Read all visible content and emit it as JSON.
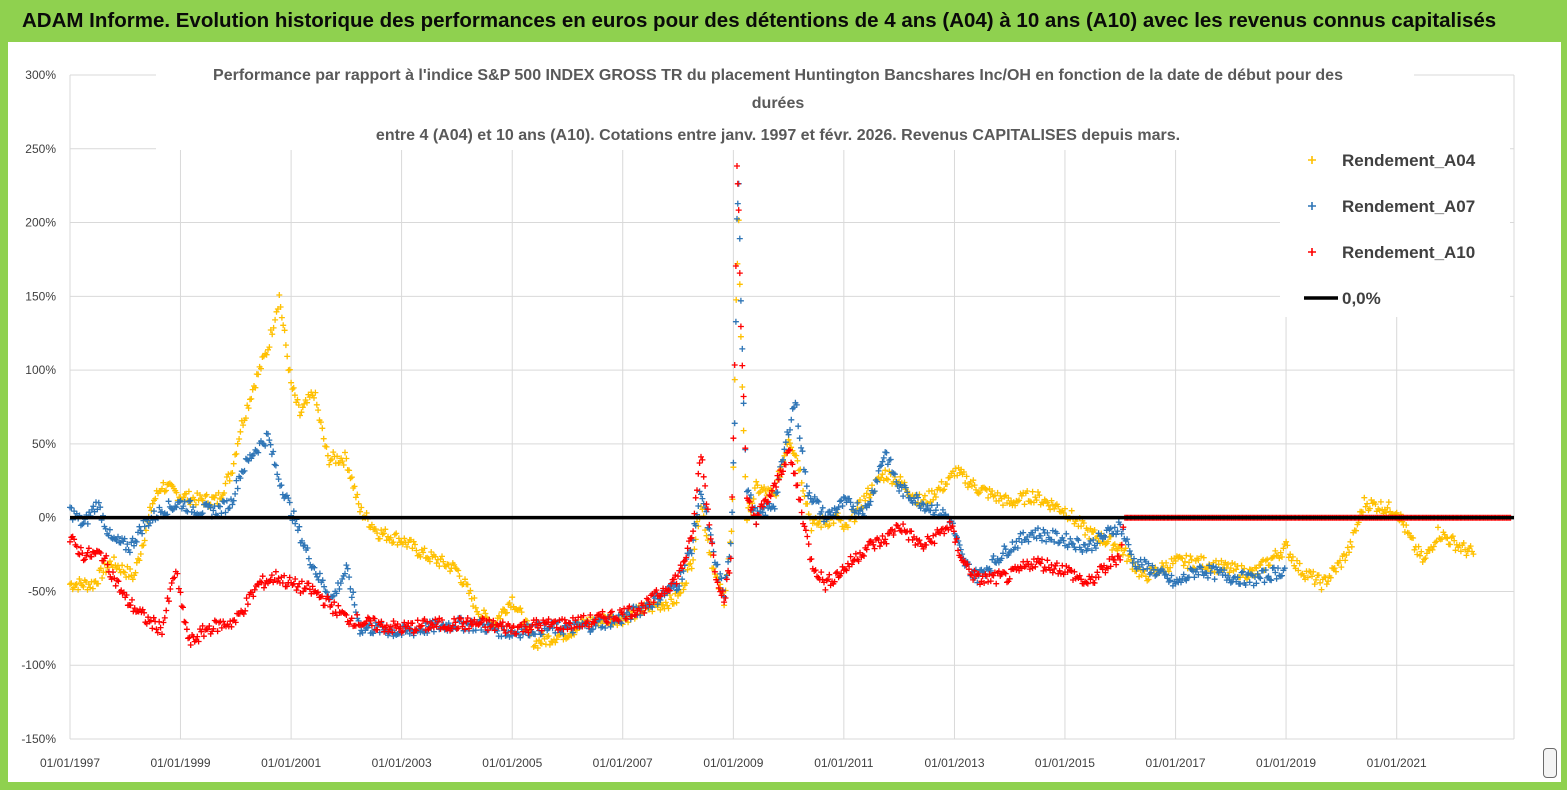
{
  "banner": {
    "title": "ADAM Informe. Evolution historique des performances en euros pour des détentions de 4 ans (A04) à 10 ans (A10) avec les revenus connus capitalisés"
  },
  "colors": {
    "banner_bg": "#8fd14f",
    "A04": "#ffc000",
    "A07": "#2e75b6",
    "A10": "#ff0000",
    "zero_line": "#000000"
  },
  "chart_data": {
    "type": "scatter",
    "title_lines": [
      "Performance par rapport à l'indice S&P 500 INDEX GROSS TR  du placement Huntington Bancshares Inc/OH en fonction de la date de début pour des",
      "durées",
      "entre 4 (A04) et 10 ans (A10). Cotations entre janv. 1997 et févr. 2026. Revenus CAPITALISES depuis mars."
    ],
    "x_type": "date",
    "x_range": [
      "1997-01-01",
      "2023-02-15"
    ],
    "x_tick_labels": [
      "01/01/1997",
      "01/01/1999",
      "01/01/2001",
      "01/01/2003",
      "01/01/2005",
      "01/01/2007",
      "01/01/2009",
      "01/01/2011",
      "01/01/2013",
      "01/01/2015",
      "01/01/2017",
      "01/01/2019",
      "01/01/2021"
    ],
    "y_tick_labels": [
      "300%",
      "250%",
      "200%",
      "150%",
      "100%",
      "50%",
      "0%",
      "-50%",
      "-100%",
      "-150%"
    ],
    "ylim": [
      -150,
      300
    ],
    "y_unit": "%",
    "grid": "horizontal and vertical",
    "legend_position": "top-right",
    "series": [
      {
        "name": "Rendement_A04",
        "marker": "plus",
        "points": [
          [
            "1997-01-01",
            -45
          ],
          [
            "1997-06-01",
            -45
          ],
          [
            "1997-10-01",
            -30
          ],
          [
            "1998-03-01",
            -40
          ],
          [
            "1998-07-01",
            10
          ],
          [
            "1998-09-01",
            22
          ],
          [
            "1999-01-01",
            15
          ],
          [
            "1999-05-01",
            12
          ],
          [
            "1999-09-01",
            12
          ],
          [
            "1999-12-01",
            30
          ],
          [
            "2000-02-01",
            60
          ],
          [
            "2000-05-01",
            90
          ],
          [
            "2000-08-01",
            115
          ],
          [
            "2000-10-15",
            150
          ],
          [
            "2001-01-01",
            90
          ],
          [
            "2001-03-01",
            70
          ],
          [
            "2001-06-01",
            85
          ],
          [
            "2001-09-01",
            40
          ],
          [
            "2002-01-01",
            40
          ],
          [
            "2002-04-01",
            5
          ],
          [
            "2002-08-01",
            -10
          ],
          [
            "2003-01-01",
            -15
          ],
          [
            "2003-06-01",
            -25
          ],
          [
            "2004-01-01",
            -35
          ],
          [
            "2004-06-01",
            -65
          ],
          [
            "2004-09-01",
            -72
          ],
          [
            "2005-01-01",
            -55
          ],
          [
            "2005-06-01",
            -85
          ],
          [
            "2006-01-01",
            -78
          ],
          [
            "2006-06-01",
            -70
          ],
          [
            "2007-01-01",
            -68
          ],
          [
            "2007-06-01",
            -62
          ],
          [
            "2008-01-01",
            -55
          ],
          [
            "2008-04-01",
            -30
          ],
          [
            "2008-06-01",
            10
          ],
          [
            "2008-09-01",
            -40
          ],
          [
            "2008-11-01",
            -55
          ],
          [
            "2008-12-20",
            -10
          ],
          [
            "2009-01-01",
            30
          ],
          [
            "2009-01-20",
            150
          ],
          [
            "2009-02-05",
            200
          ],
          [
            "2009-02-20",
            120
          ],
          [
            "2009-03-10",
            60
          ],
          [
            "2009-04-01",
            0
          ],
          [
            "2009-06-01",
            20
          ],
          [
            "2009-10-01",
            15
          ],
          [
            "2010-01-01",
            55
          ],
          [
            "2010-03-01",
            40
          ],
          [
            "2010-06-01",
            -5
          ],
          [
            "2010-12-01",
            0
          ],
          [
            "2011-01-01",
            -10
          ],
          [
            "2011-06-01",
            15
          ],
          [
            "2011-10-01",
            30
          ],
          [
            "2012-01-01",
            25
          ],
          [
            "2012-06-01",
            10
          ],
          [
            "2012-12-01",
            25
          ],
          [
            "2013-01-01",
            32
          ],
          [
            "2013-06-01",
            20
          ],
          [
            "2014-01-01",
            10
          ],
          [
            "2014-06-01",
            15
          ],
          [
            "2015-01-01",
            5
          ],
          [
            "2015-06-01",
            -10
          ],
          [
            "2016-01-01",
            -20
          ],
          [
            "2016-06-01",
            -40
          ],
          [
            "2017-01-01",
            -30
          ],
          [
            "2017-06-01",
            -30
          ],
          [
            "2018-01-01",
            -35
          ],
          [
            "2018-06-01",
            -38
          ],
          [
            "2019-01-01",
            -20
          ],
          [
            "2019-04-01",
            -35
          ],
          [
            "2019-09-01",
            -45
          ],
          [
            "2020-01-01",
            -30
          ],
          [
            "2020-03-01",
            -20
          ],
          [
            "2020-06-01",
            10
          ],
          [
            "2020-09-01",
            8
          ],
          [
            "2021-01-01",
            5
          ],
          [
            "2021-04-01",
            -15
          ],
          [
            "2021-07-01",
            -30
          ],
          [
            "2021-10-01",
            -10
          ],
          [
            "2022-03-01",
            -20
          ],
          [
            "2022-06-01",
            -25
          ]
        ]
      },
      {
        "name": "Rendement_A07",
        "marker": "plus",
        "points": [
          [
            "1997-01-01",
            5
          ],
          [
            "1997-04-01",
            -5
          ],
          [
            "1997-07-01",
            10
          ],
          [
            "1997-10-01",
            -15
          ],
          [
            "1998-02-01",
            -20
          ],
          [
            "1998-05-01",
            -5
          ],
          [
            "1998-09-01",
            5
          ],
          [
            "1999-01-01",
            10
          ],
          [
            "1999-05-01",
            5
          ],
          [
            "1999-09-01",
            5
          ],
          [
            "1999-12-01",
            10
          ],
          [
            "2000-02-01",
            30
          ],
          [
            "2000-05-01",
            45
          ],
          [
            "2000-08-01",
            55
          ],
          [
            "2000-10-01",
            30
          ],
          [
            "2001-01-01",
            5
          ],
          [
            "2001-04-01",
            -20
          ],
          [
            "2001-07-01",
            -40
          ],
          [
            "2001-10-01",
            -55
          ],
          [
            "2002-01-01",
            -35
          ],
          [
            "2002-04-01",
            -75
          ],
          [
            "2002-08-01",
            -75
          ],
          [
            "2003-01-01",
            -78
          ],
          [
            "2003-06-01",
            -75
          ],
          [
            "2004-01-01",
            -72
          ],
          [
            "2004-06-01",
            -73
          ],
          [
            "2005-01-01",
            -78
          ],
          [
            "2005-06-01",
            -75
          ],
          [
            "2006-01-01",
            -75
          ],
          [
            "2006-06-01",
            -73
          ],
          [
            "2007-01-01",
            -68
          ],
          [
            "2007-06-01",
            -60
          ],
          [
            "2008-01-01",
            -45
          ],
          [
            "2008-04-01",
            -20
          ],
          [
            "2008-06-01",
            20
          ],
          [
            "2008-09-01",
            -30
          ],
          [
            "2008-11-01",
            -50
          ],
          [
            "2008-12-15",
            -20
          ],
          [
            "2009-01-10",
            60
          ],
          [
            "2009-01-25",
            200
          ],
          [
            "2009-02-05",
            230
          ],
          [
            "2009-02-20",
            150
          ],
          [
            "2009-03-10",
            80
          ],
          [
            "2009-04-01",
            20
          ],
          [
            "2009-06-01",
            0
          ],
          [
            "2009-10-01",
            10
          ],
          [
            "2010-01-01",
            60
          ],
          [
            "2010-02-15",
            80
          ],
          [
            "2010-05-01",
            20
          ],
          [
            "2010-09-01",
            0
          ],
          [
            "2011-01-01",
            10
          ],
          [
            "2011-06-01",
            5
          ],
          [
            "2011-10-01",
            45
          ],
          [
            "2012-01-01",
            20
          ],
          [
            "2012-06-01",
            10
          ],
          [
            "2012-12-01",
            0
          ],
          [
            "2013-01-01",
            -10
          ],
          [
            "2013-03-01",
            -30
          ],
          [
            "2013-06-01",
            -40
          ],
          [
            "2014-01-01",
            -20
          ],
          [
            "2014-06-01",
            -10
          ],
          [
            "2015-01-01",
            -15
          ],
          [
            "2015-06-01",
            -20
          ],
          [
            "2016-01-01",
            -5
          ],
          [
            "2016-04-01",
            -30
          ],
          [
            "2016-08-01",
            -35
          ],
          [
            "2017-01-01",
            -45
          ],
          [
            "2017-06-01",
            -35
          ],
          [
            "2018-01-01",
            -40
          ],
          [
            "2018-06-01",
            -42
          ],
          [
            "2019-01-01",
            -35
          ]
        ]
      },
      {
        "name": "Rendement_A10",
        "marker": "plus",
        "points": [
          [
            "1997-01-01",
            -15
          ],
          [
            "1997-04-01",
            -25
          ],
          [
            "1997-08-01",
            -25
          ],
          [
            "1998-01-01",
            -55
          ],
          [
            "1998-06-01",
            -70
          ],
          [
            "1998-09-01",
            -75
          ],
          [
            "1998-12-01",
            -35
          ],
          [
            "1999-01-01",
            -55
          ],
          [
            "1999-03-01",
            -85
          ],
          [
            "1999-07-01",
            -75
          ],
          [
            "2000-01-01",
            -70
          ],
          [
            "2000-06-01",
            -45
          ],
          [
            "2000-10-01",
            -40
          ],
          [
            "2001-01-01",
            -45
          ],
          [
            "2001-06-01",
            -50
          ],
          [
            "2002-01-01",
            -68
          ],
          [
            "2002-06-01",
            -72
          ],
          [
            "2003-01-01",
            -75
          ],
          [
            "2003-06-01",
            -73
          ],
          [
            "2004-01-01",
            -72
          ],
          [
            "2004-06-01",
            -72
          ],
          [
            "2005-01-01",
            -75
          ],
          [
            "2005-06-01",
            -73
          ],
          [
            "2006-01-01",
            -72
          ],
          [
            "2006-06-01",
            -70
          ],
          [
            "2007-01-01",
            -65
          ],
          [
            "2007-06-01",
            -60
          ],
          [
            "2008-01-01",
            -40
          ],
          [
            "2008-04-01",
            -15
          ],
          [
            "2008-06-01",
            45
          ],
          [
            "2008-09-01",
            -35
          ],
          [
            "2008-11-01",
            -55
          ],
          [
            "2008-12-15",
            -30
          ],
          [
            "2009-01-10",
            100
          ],
          [
            "2009-01-25",
            240
          ],
          [
            "2009-02-05",
            210
          ],
          [
            "2009-02-20",
            130
          ],
          [
            "2009-03-10",
            80
          ],
          [
            "2009-04-01",
            10
          ],
          [
            "2009-06-01",
            0
          ],
          [
            "2009-10-01",
            20
          ],
          [
            "2010-01-01",
            45
          ],
          [
            "2010-03-01",
            20
          ],
          [
            "2010-06-01",
            -30
          ],
          [
            "2010-09-01",
            -45
          ],
          [
            "2011-01-01",
            -35
          ],
          [
            "2011-06-01",
            -20
          ],
          [
            "2011-10-01",
            -15
          ],
          [
            "2012-01-01",
            -5
          ],
          [
            "2012-06-01",
            -20
          ],
          [
            "2012-12-01",
            -5
          ],
          [
            "2013-03-01",
            -30
          ],
          [
            "2013-06-01",
            -42
          ],
          [
            "2014-01-01",
            -40
          ],
          [
            "2014-06-01",
            -30
          ],
          [
            "2015-01-01",
            -35
          ],
          [
            "2015-06-01",
            -45
          ],
          [
            "2016-01-01",
            -25
          ],
          [
            "2016-02-01",
            0
          ],
          [
            "2017-01-01",
            0
          ],
          [
            "2019-01-01",
            0
          ],
          [
            "2021-01-01",
            0
          ],
          [
            "2023-02-01",
            0
          ]
        ]
      }
    ],
    "reference_lines": [
      {
        "name": "0,0%",
        "y": 0,
        "color": "#000000"
      }
    ]
  }
}
